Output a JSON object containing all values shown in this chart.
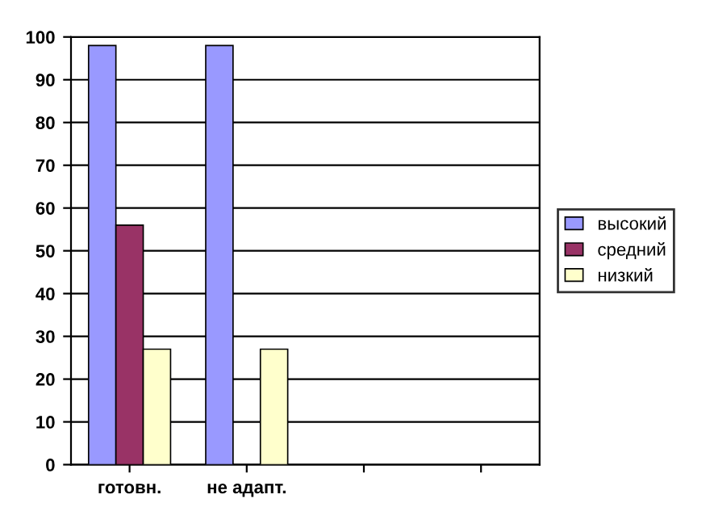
{
  "chart_data": {
    "type": "bar",
    "categories": [
      "готовн.",
      "не адапт.",
      null,
      null
    ],
    "series": [
      {
        "name": "высокий",
        "color": "#9999ff",
        "values": [
          98,
          98,
          null,
          null
        ]
      },
      {
        "name": "средний",
        "color": "#993366",
        "values": [
          56,
          null,
          null,
          null
        ]
      },
      {
        "name": "низкий",
        "color": "#ffffcc",
        "values": [
          27,
          27,
          null,
          null
        ]
      }
    ],
    "ylim": [
      0,
      100
    ],
    "yticks": [
      0,
      10,
      20,
      30,
      40,
      50,
      60,
      70,
      80,
      90,
      100
    ],
    "grid": "y",
    "legend": "right"
  }
}
